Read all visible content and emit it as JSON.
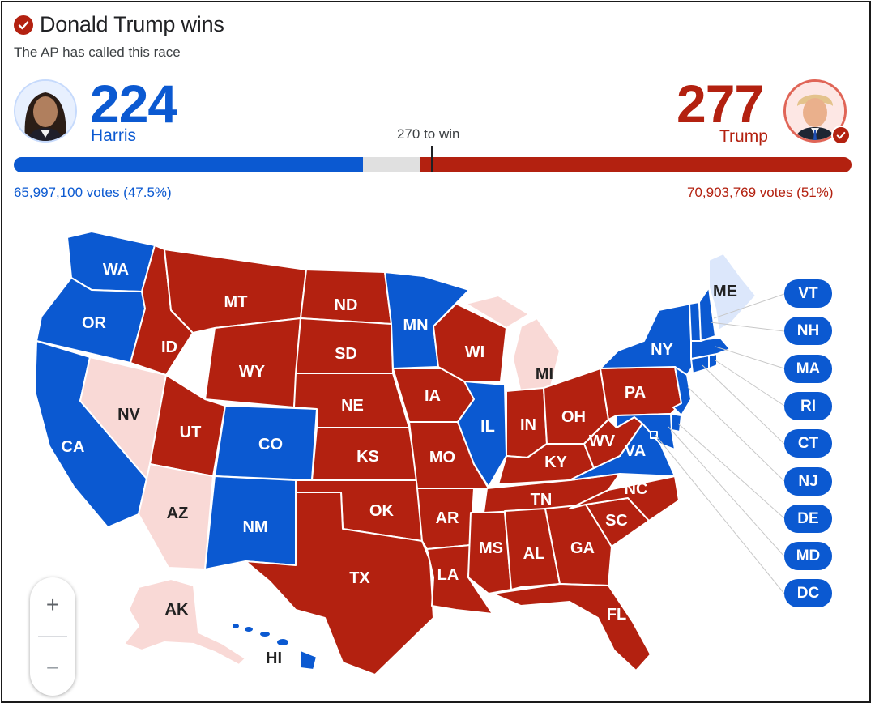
{
  "header": {
    "headline": "Donald Trump wins",
    "subline": "The AP has called this race"
  },
  "colors": {
    "dem": "#0b59d1",
    "rep": "#b32110",
    "dem_light": "#dce7fb",
    "rep_light": "#f9d9d6",
    "undecided": "#e0e0e0"
  },
  "harris": {
    "electoral_votes": "224",
    "name": "Harris",
    "votes": "65,997,100 votes (47.5%)"
  },
  "trump": {
    "electoral_votes": "277",
    "name": "Trump",
    "votes": "70,903,769 votes (51%)"
  },
  "threshold": {
    "label": "270 to win",
    "value": 270,
    "total": 538
  },
  "map": {
    "states": {
      "WA": "WA",
      "OR": "OR",
      "CA": "CA",
      "NV": "NV",
      "ID": "ID",
      "MT": "MT",
      "WY": "WY",
      "UT": "UT",
      "AZ": "AZ",
      "CO": "CO",
      "NM": "NM",
      "ND": "ND",
      "SD": "SD",
      "NE": "NE",
      "KS": "KS",
      "OK": "OK",
      "TX": "TX",
      "MN": "MN",
      "IA": "IA",
      "MO": "MO",
      "AR": "AR",
      "LA": "LA",
      "WI": "WI",
      "IL": "IL",
      "MI": "MI",
      "IN": "IN",
      "OH": "OH",
      "KY": "KY",
      "TN": "TN",
      "MS": "MS",
      "AL": "AL",
      "GA": "GA",
      "FL": "FL",
      "SC": "SC",
      "NC": "NC",
      "VA": "VA",
      "WV": "WV",
      "PA": "PA",
      "NY": "NY",
      "ME": "ME",
      "AK": "AK",
      "HI": "HI"
    },
    "small_states": [
      "VT",
      "NH",
      "MA",
      "RI",
      "CT",
      "NJ",
      "DE",
      "MD",
      "DC"
    ]
  },
  "zoom": {
    "in": "+",
    "out": "−"
  }
}
